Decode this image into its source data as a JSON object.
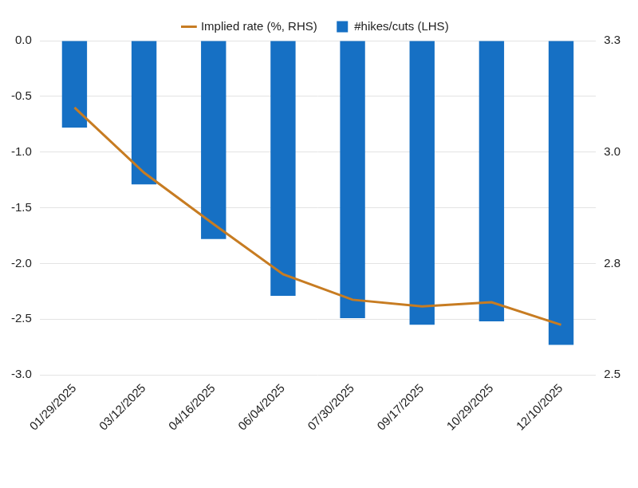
{
  "chart_data": {
    "type": "bar",
    "categories": [
      "01/29/2025",
      "03/12/2025",
      "04/16/2025",
      "06/04/2025",
      "07/30/2025",
      "09/17/2025",
      "10/29/2025",
      "12/10/2025"
    ],
    "series": [
      {
        "name": "#hikes/cuts (LHS)",
        "type": "bar",
        "color": "#1670c4",
        "values": [
          -0.78,
          -1.29,
          -1.78,
          -2.29,
          -2.49,
          -2.55,
          -2.52,
          -2.73
        ]
      },
      {
        "name": "Implied rate (%, RHS)",
        "type": "line",
        "color": "#c77c22",
        "axis": "y2",
        "values": [
          3.14,
          2.984,
          2.861,
          2.741,
          2.68,
          2.664,
          2.674,
          2.62
        ]
      }
    ],
    "ylim": [
      -3,
      0
    ],
    "yticks": [
      {
        "value": 0,
        "label": "0.0"
      },
      -0.5,
      {
        "value": -1,
        "label": "-1.0"
      },
      -1.5,
      {
        "value": -2,
        "label": "-2.0"
      },
      -2.5,
      {
        "value": -3,
        "label": "-3.0"
      }
    ],
    "y2lim": [
      2.5,
      3.3
    ],
    "y2ticks": [
      2.5,
      {
        "value": 2.7667,
        "label": "2.8"
      },
      {
        "value": 3.0333,
        "label": "3.0"
      },
      3.3
    ],
    "grid": true,
    "legend": "top"
  }
}
